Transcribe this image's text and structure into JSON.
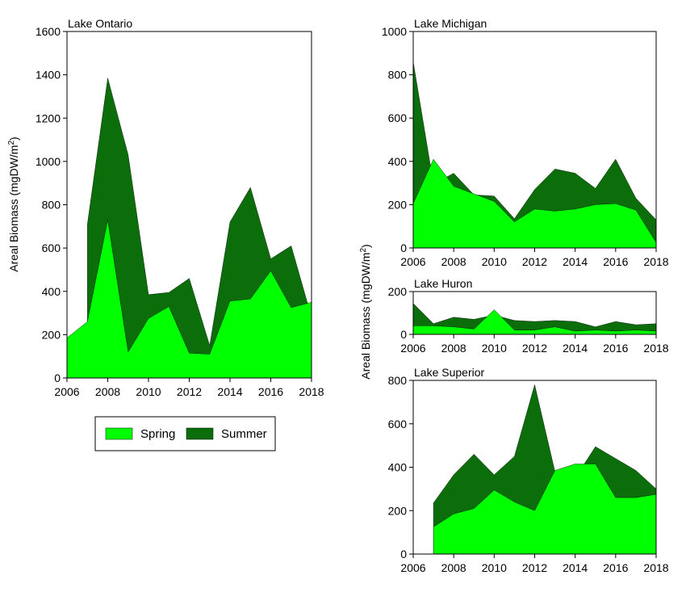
{
  "colors": {
    "spring": "#00ff00",
    "summer": "#0b6e0b",
    "axis": "#000000"
  },
  "ylabel_text": "Areal Biomass (mgDW/m",
  "ylabel_sup": "2",
  "ylabel_close": ")",
  "legend": {
    "items": [
      {
        "key": "spring",
        "label": "Spring"
      },
      {
        "key": "summer",
        "label": "Summer"
      }
    ]
  },
  "chart_data": [
    {
      "type": "area",
      "title": "Lake Ontario",
      "xlim": [
        2006,
        2018
      ],
      "ylim": [
        0,
        1600
      ],
      "xticks": [
        2006,
        2008,
        2010,
        2012,
        2014,
        2016,
        2018
      ],
      "yticks": [
        0,
        200,
        400,
        600,
        800,
        1000,
        1200,
        1400,
        1600
      ],
      "grid": false,
      "series": [
        {
          "name": "Summer",
          "x": [
            2007,
            2008,
            2009,
            2010,
            2011,
            2012,
            2013,
            2014,
            2015,
            2016,
            2017,
            2018
          ],
          "values": [
            710,
            1385,
            1030,
            385,
            395,
            460,
            150,
            720,
            880,
            550,
            610,
            280
          ]
        },
        {
          "name": "Spring",
          "x": [
            2006,
            2007,
            2008,
            2009,
            2010,
            2011,
            2012,
            2013,
            2014,
            2015,
            2016,
            2017,
            2018
          ],
          "values": [
            185,
            260,
            730,
            120,
            275,
            330,
            115,
            110,
            355,
            365,
            495,
            325,
            350
          ]
        }
      ]
    },
    {
      "type": "area",
      "title": "Lake Michigan",
      "xlim": [
        2006,
        2018
      ],
      "ylim": [
        0,
        1000
      ],
      "xticks": [
        2006,
        2008,
        2010,
        2012,
        2014,
        2016,
        2018
      ],
      "yticks": [
        0,
        200,
        400,
        600,
        800,
        1000
      ],
      "grid": false,
      "series": [
        {
          "name": "Summer",
          "x": [
            2006,
            2007,
            2008,
            2009,
            2010,
            2011,
            2012,
            2013,
            2014,
            2015,
            2016,
            2017,
            2018
          ],
          "values": [
            860,
            295,
            345,
            245,
            240,
            135,
            270,
            365,
            345,
            275,
            410,
            230,
            130
          ]
        },
        {
          "name": "Spring",
          "x": [
            2006,
            2007,
            2008,
            2009,
            2010,
            2011,
            2012,
            2013,
            2014,
            2015,
            2016,
            2017,
            2018
          ],
          "values": [
            205,
            410,
            285,
            250,
            215,
            120,
            180,
            170,
            180,
            200,
            205,
            175,
            25
          ]
        }
      ]
    },
    {
      "type": "area",
      "title": "Lake Huron",
      "xlim": [
        2006,
        2018
      ],
      "ylim": [
        0,
        200
      ],
      "xticks": [
        2006,
        2008,
        2010,
        2012,
        2014,
        2016,
        2018
      ],
      "yticks": [
        0,
        200
      ],
      "grid": false,
      "series": [
        {
          "name": "Summer",
          "x": [
            2006,
            2007,
            2008,
            2009,
            2010,
            2011,
            2012,
            2013,
            2014,
            2015,
            2016,
            2017,
            2018
          ],
          "values": [
            145,
            50,
            80,
            70,
            90,
            65,
            60,
            65,
            60,
            35,
            60,
            45,
            50
          ]
        },
        {
          "name": "Spring",
          "x": [
            2006,
            2007,
            2008,
            2009,
            2010,
            2011,
            2012,
            2013,
            2014,
            2015,
            2016,
            2017,
            2018
          ],
          "values": [
            40,
            40,
            35,
            25,
            115,
            20,
            20,
            35,
            15,
            20,
            15,
            20,
            15
          ]
        }
      ]
    },
    {
      "type": "area",
      "title": "Lake Superior",
      "xlim": [
        2006,
        2018
      ],
      "ylim": [
        0,
        800
      ],
      "xticks": [
        2006,
        2008,
        2010,
        2012,
        2014,
        2016,
        2018
      ],
      "yticks": [
        0,
        200,
        400,
        600,
        800
      ],
      "grid": false,
      "series": [
        {
          "name": "Summer",
          "x": [
            2007,
            2008,
            2009,
            2010,
            2011,
            2012,
            2013,
            2014,
            2015,
            2016,
            2017,
            2018
          ],
          "values": [
            235,
            365,
            460,
            365,
            450,
            780,
            380,
            350,
            495,
            440,
            385,
            300
          ]
        },
        {
          "name": "Spring",
          "x": [
            2007,
            2008,
            2009,
            2010,
            2011,
            2012,
            2013,
            2014,
            2015,
            2016,
            2017,
            2018
          ],
          "values": [
            125,
            185,
            210,
            295,
            240,
            200,
            385,
            415,
            415,
            260,
            260,
            275
          ]
        }
      ]
    }
  ]
}
